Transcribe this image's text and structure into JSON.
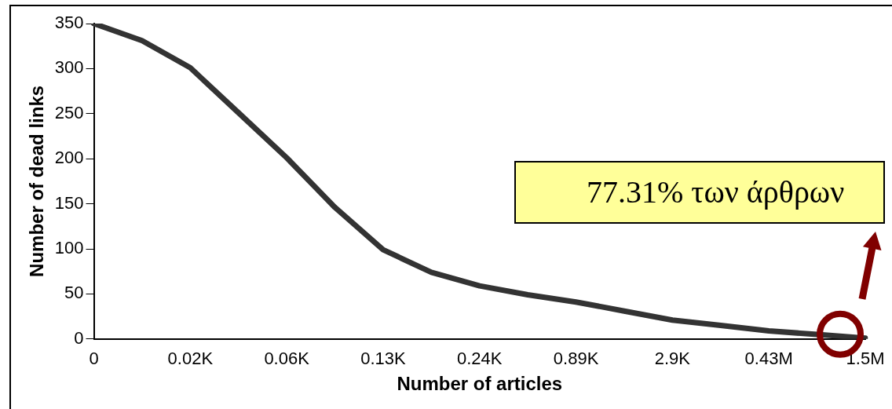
{
  "chart_data": {
    "type": "line",
    "xlabel": "Number of articles",
    "ylabel": "Number of dead links",
    "categories": [
      "0",
      null,
      "0.02K",
      null,
      "0.06K",
      null,
      "0.13K",
      null,
      "0.24K",
      null,
      "0.89K",
      null,
      "2.9K",
      null,
      "0.43M",
      null,
      "1.5M"
    ],
    "series": [
      {
        "color": "#333333",
        "values": [
          350,
          331,
          301,
          251,
          201,
          146,
          99,
          74,
          59,
          49,
          41,
          31,
          21,
          15,
          9,
          5,
          1
        ]
      }
    ],
    "ylim": [
      0,
      350
    ],
    "yticks": [
      0,
      50,
      100,
      150,
      200,
      250,
      300,
      350
    ],
    "grid": false,
    "legend": false,
    "marker": "none",
    "line_style": "solid",
    "annotations": [
      "77.31% των άρθρων"
    ]
  }
}
